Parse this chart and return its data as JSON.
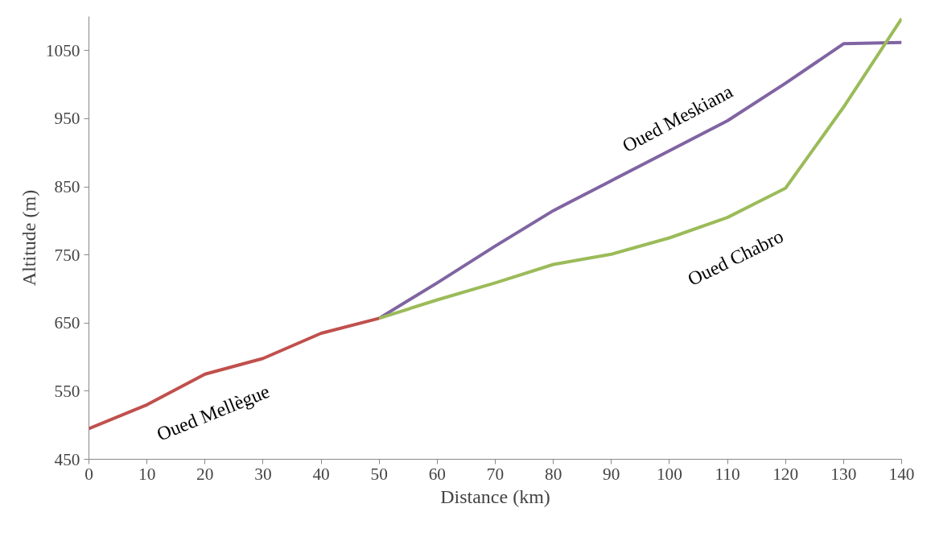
{
  "chart_data": {
    "type": "line",
    "xlabel": "Distance (km)",
    "ylabel": "Altitude (m)",
    "xlim": [
      0,
      140
    ],
    "xticks": [
      0,
      10,
      20,
      30,
      40,
      50,
      60,
      70,
      80,
      90,
      100,
      110,
      120,
      130,
      140
    ],
    "ylim": [
      450,
      1100
    ],
    "yticks": [
      450,
      550,
      650,
      750,
      850,
      950,
      1050
    ],
    "grid": false,
    "series": [
      {
        "name": "Oued Mellègue",
        "color": "#c0504d",
        "x": [
          0,
          10,
          20,
          30,
          40,
          50
        ],
        "values": [
          495,
          530,
          575,
          598,
          635,
          657
        ]
      },
      {
        "name": "Oued Meskiana",
        "color": "#8064a2",
        "x": [
          50,
          60,
          70,
          80,
          90,
          100,
          110,
          120,
          130,
          140
        ],
        "values": [
          657,
          709,
          763,
          815,
          859,
          903,
          947,
          1002,
          1060,
          1062
        ]
      },
      {
        "name": "Oued Chabro",
        "color": "#9bbb59",
        "x": [
          50,
          60,
          70,
          80,
          90,
          100,
          110,
          120,
          130,
          140
        ],
        "values": [
          657,
          684,
          709,
          736,
          751,
          775,
          805,
          848,
          967,
          1097
        ]
      }
    ]
  }
}
